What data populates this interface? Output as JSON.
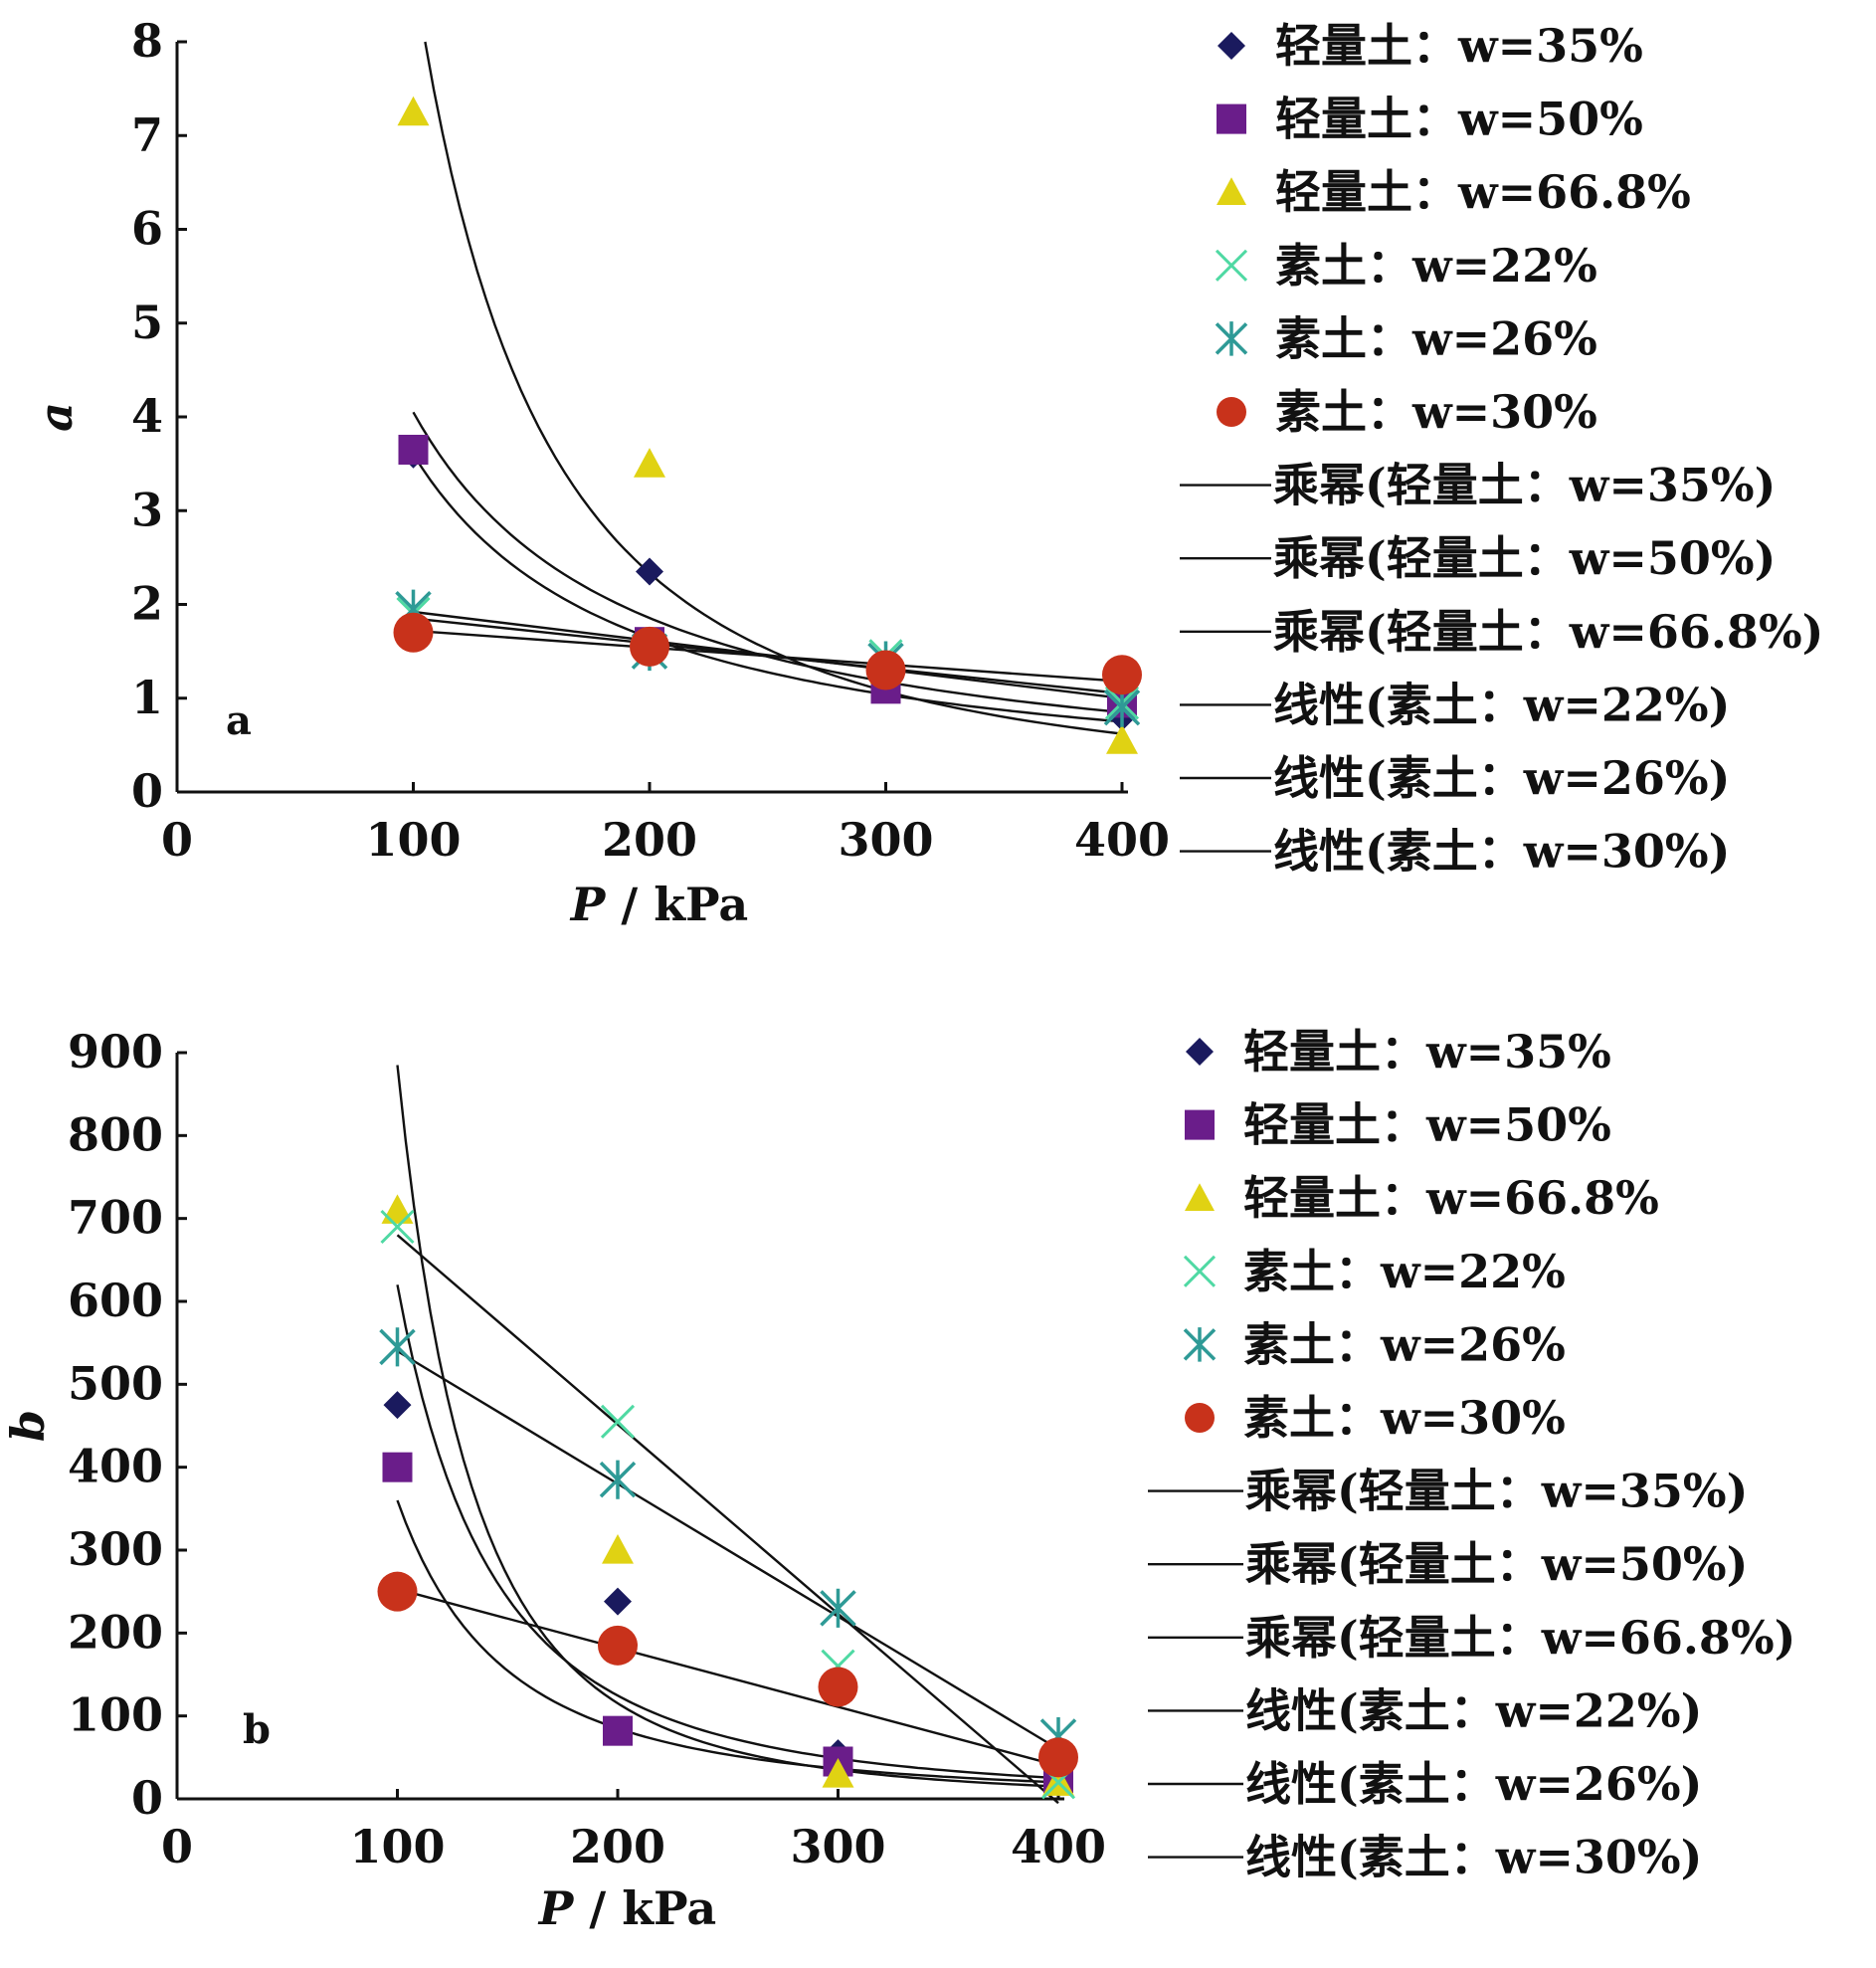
{
  "marker_styles": [
    {
      "shape": "diamond",
      "color": "#1a1a5e"
    },
    {
      "shape": "square",
      "color": "#6a1d8a"
    },
    {
      "shape": "triangle",
      "color": "#e0d213"
    },
    {
      "shape": "x",
      "color": "#4fd9a3"
    },
    {
      "shape": "asterisk",
      "color": "#2e9a96"
    },
    {
      "shape": "circle",
      "color": "#c8321b"
    }
  ],
  "legend_entries": [
    "轻量土：w=35%",
    "轻量土：w=50%",
    "轻量土：w=66.8%",
    "素土：w=22%",
    "素土：w=26%",
    "素土：w=30%",
    "乘幂(轻量土：w=35%)",
    "乘幂(轻量土：w=50%)",
    "乘幂(轻量土：w=66.8%)",
    "线性(素土：w=22%)",
    "线性(素土：w=26%)",
    "线性(素土：w=30%)"
  ],
  "chart_data": [
    {
      "type": "scatter",
      "panel_label": "a",
      "xlabel_var": "P",
      "xlabel_unit": " / kPa",
      "ylabel": "a",
      "xlim": [
        0,
        400
      ],
      "ylim": [
        0,
        8
      ],
      "x_ticks": [
        0,
        100,
        200,
        300,
        400
      ],
      "y_ticks": [
        0,
        1,
        2,
        3,
        4,
        5,
        6,
        7,
        8
      ],
      "grid": false,
      "legend_position": "right",
      "series": [
        {
          "name": "轻量土：w=35%",
          "x": [
            100,
            200,
            300,
            400
          ],
          "y": [
            3.6,
            2.35,
            1.25,
            0.8
          ]
        },
        {
          "name": "轻量土：w=50%",
          "x": [
            100,
            200,
            300,
            400
          ],
          "y": [
            3.65,
            1.6,
            1.1,
            0.95
          ]
        },
        {
          "name": "轻量土：w=66.8%",
          "x": [
            100,
            200,
            300,
            400
          ],
          "y": [
            7.25,
            3.5,
            1.3,
            0.55
          ]
        },
        {
          "name": "素土：w=22%",
          "x": [
            100,
            200,
            300,
            400
          ],
          "y": [
            1.9,
            1.5,
            1.45,
            0.95
          ]
        },
        {
          "name": "素土：w=26%",
          "x": [
            100,
            200,
            300,
            400
          ],
          "y": [
            1.95,
            1.5,
            1.4,
            0.9
          ]
        },
        {
          "name": "素土：w=30%",
          "x": [
            100,
            200,
            300,
            400
          ],
          "y": [
            1.7,
            1.55,
            1.3,
            1.25
          ]
        }
      ],
      "fits": [
        {
          "name": "乘幂(轻量土：w=35%)",
          "kind": "power",
          "x_range": [
            100,
            400
          ],
          "y_at_x_min": 3.6,
          "y_at_x_max": 0.75
        },
        {
          "name": "乘幂(轻量土：w=50%)",
          "kind": "power",
          "x_range": [
            100,
            400
          ],
          "y_at_x_min": 4.05,
          "y_at_x_max": 0.85
        },
        {
          "name": "乘幂(轻量土：w=66.8%)",
          "kind": "power",
          "x_range": [
            105,
            400
          ],
          "y_at_x_min": 8.0,
          "y_at_x_max": 0.62
        },
        {
          "name": "线性(素土：w=22%)",
          "kind": "linear",
          "x_range": [
            100,
            400
          ],
          "y_at_x_min": 1.92,
          "y_at_x_max": 1.0
        },
        {
          "name": "线性(素土：w=26%)",
          "kind": "linear",
          "x_range": [
            100,
            400
          ],
          "y_at_x_min": 1.85,
          "y_at_x_max": 1.05
        },
        {
          "name": "线性(素土：w=30%)",
          "kind": "linear",
          "x_range": [
            100,
            400
          ],
          "y_at_x_min": 1.72,
          "y_at_x_max": 1.18
        }
      ]
    },
    {
      "type": "scatter",
      "panel_label": "b",
      "xlabel_var": "P",
      "xlabel_unit": " / kPa",
      "ylabel": "b",
      "xlim": [
        0,
        400
      ],
      "ylim": [
        0,
        900
      ],
      "x_ticks": [
        0,
        100,
        200,
        300,
        400
      ],
      "y_ticks": [
        0,
        100,
        200,
        300,
        400,
        500,
        600,
        700,
        800,
        900
      ],
      "grid": false,
      "legend_position": "right",
      "series": [
        {
          "name": "轻量土：w=35%",
          "x": [
            100,
            200,
            300,
            400
          ],
          "y": [
            475,
            238,
            55,
            30
          ]
        },
        {
          "name": "轻量土：w=50%",
          "x": [
            100,
            200,
            300,
            400
          ],
          "y": [
            400,
            82,
            45,
            25
          ]
        },
        {
          "name": "轻量土：w=66.8%",
          "x": [
            100,
            200,
            300,
            400
          ],
          "y": [
            710,
            300,
            30,
            20
          ]
        },
        {
          "name": "素土：w=22%",
          "x": [
            100,
            200,
            300,
            400
          ],
          "y": [
            690,
            455,
            160,
            20
          ]
        },
        {
          "name": "素土：w=26%",
          "x": [
            100,
            200,
            300,
            400
          ],
          "y": [
            545,
            385,
            230,
            75
          ]
        },
        {
          "name": "素土：w=30%",
          "x": [
            100,
            200,
            300,
            400
          ],
          "y": [
            250,
            185,
            135,
            50
          ]
        }
      ],
      "fits": [
        {
          "name": "乘幂(轻量土：w=35%)",
          "kind": "power",
          "x_range": [
            100,
            400
          ],
          "y_at_x_min": 620,
          "y_at_x_max": 25
        },
        {
          "name": "乘幂(轻量土：w=50%)",
          "kind": "power",
          "x_range": [
            100,
            400
          ],
          "y_at_x_min": 360,
          "y_at_x_max": 20
        },
        {
          "name": "乘幂(轻量土：w=66.8%)",
          "kind": "power",
          "x_range": [
            100,
            400
          ],
          "y_at_x_min": 885,
          "y_at_x_max": 15
        },
        {
          "name": "线性(素土：w=22%)",
          "kind": "linear",
          "x_range": [
            100,
            400
          ],
          "y_at_x_min": 680,
          "y_at_x_max": -5
        },
        {
          "name": "线性(素土：w=26%)",
          "kind": "linear",
          "x_range": [
            100,
            400
          ],
          "y_at_x_min": 540,
          "y_at_x_max": 60
        },
        {
          "name": "线性(素土：w=30%)",
          "kind": "linear",
          "x_range": [
            100,
            400
          ],
          "y_at_x_min": 253,
          "y_at_x_max": 40
        }
      ]
    }
  ]
}
